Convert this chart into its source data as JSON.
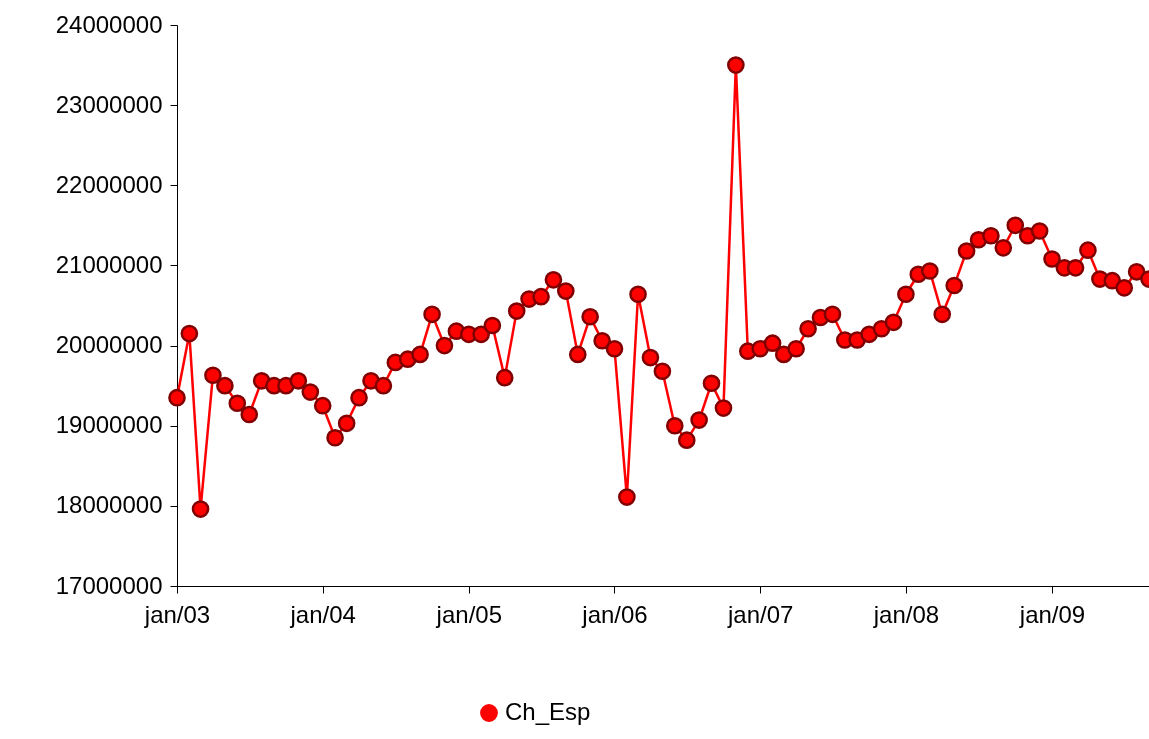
{
  "chart_data": {
    "type": "line",
    "x": [
      "2003-01",
      "2003-02",
      "2003-03",
      "2003-04",
      "2003-05",
      "2003-06",
      "2003-07",
      "2003-08",
      "2003-09",
      "2003-10",
      "2003-11",
      "2003-12",
      "2004-01",
      "2004-02",
      "2004-03",
      "2004-04",
      "2004-05",
      "2004-06",
      "2004-07",
      "2004-08",
      "2004-09",
      "2004-10",
      "2004-11",
      "2004-12",
      "2005-01",
      "2005-02",
      "2005-03",
      "2005-04",
      "2005-05",
      "2005-06",
      "2005-07",
      "2005-08",
      "2005-09",
      "2005-10",
      "2005-11",
      "2005-12",
      "2006-01",
      "2006-02",
      "2006-03",
      "2006-04",
      "2006-05",
      "2006-06",
      "2006-07",
      "2006-08",
      "2006-09",
      "2006-10",
      "2006-11",
      "2006-12",
      "2007-01",
      "2007-02",
      "2007-03",
      "2007-04",
      "2007-05",
      "2007-06",
      "2007-07",
      "2007-08",
      "2007-09",
      "2007-10",
      "2007-11",
      "2007-12",
      "2008-01",
      "2008-02",
      "2008-03",
      "2008-04",
      "2008-05",
      "2008-06",
      "2008-07",
      "2008-08",
      "2008-09",
      "2008-10",
      "2008-11",
      "2008-12",
      "2009-01",
      "2009-02",
      "2009-03",
      "2009-04",
      "2009-05",
      "2009-06",
      "2009-07",
      "2009-08",
      "2009-09"
    ],
    "series": [
      {
        "name": "Ch_Esp",
        "color": "#ff0000",
        "values": [
          19350000,
          20150000,
          17960000,
          19630000,
          19500000,
          19280000,
          19140000,
          19560000,
          19500000,
          19500000,
          19560000,
          19420000,
          19250000,
          18850000,
          19030000,
          19350000,
          19560000,
          19500000,
          19790000,
          19830000,
          19890000,
          20390000,
          20000000,
          20180000,
          20140000,
          20140000,
          20250000,
          19600000,
          20430000,
          20580000,
          20610000,
          20820000,
          20680000,
          19890000,
          20360000,
          20060000,
          19960000,
          18110000,
          20640000,
          19850000,
          19680000,
          19000000,
          18820000,
          19070000,
          19530000,
          19220000,
          23500000,
          19930000,
          19960000,
          20030000,
          19890000,
          19960000,
          20210000,
          20350000,
          20390000,
          20070000,
          20070000,
          20140000,
          20210000,
          20290000,
          20640000,
          20890000,
          20930000,
          20390000,
          20750000,
          21180000,
          21320000,
          21370000,
          21220000,
          21500000,
          21370000,
          21430000,
          21080000,
          20970000,
          20970000,
          21190000,
          20830000,
          20810000,
          20720000,
          20920000,
          20830000
        ]
      }
    ],
    "xlim": [
      "2003-01",
      "2009-09"
    ],
    "xticks": [
      {
        "value": "2003-01",
        "label": "jan/03"
      },
      {
        "value": "2004-01",
        "label": "jan/04"
      },
      {
        "value": "2005-01",
        "label": "jan/05"
      },
      {
        "value": "2006-01",
        "label": "jan/06"
      },
      {
        "value": "2007-01",
        "label": "jan/07"
      },
      {
        "value": "2008-01",
        "label": "jan/08"
      },
      {
        "value": "2009-01",
        "label": "jan/09"
      }
    ],
    "ylim": [
      17000000,
      24000000
    ],
    "yticks": [
      17000000,
      18000000,
      19000000,
      20000000,
      21000000,
      22000000,
      23000000,
      24000000
    ],
    "marker": "circle",
    "line_style": "solid",
    "legend": "bottom",
    "grid": false
  }
}
